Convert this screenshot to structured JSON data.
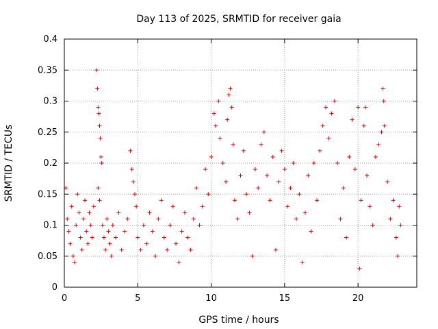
{
  "chart_data": {
    "type": "scatter",
    "title": "Day 113 of 2025, SRMTID for receiver gaia",
    "xlabel": "GPS time / hours",
    "ylabel": "SRMTID / TECUs",
    "xlim": [
      0,
      24
    ],
    "ylim": [
      0,
      0.4
    ],
    "xticks": [
      0,
      5,
      10,
      15,
      20
    ],
    "xtick_labels": [
      "0",
      "5",
      "10",
      "15",
      "20"
    ],
    "yticks": [
      0,
      0.05,
      0.1,
      0.15,
      0.2,
      0.25,
      0.3,
      0.35,
      0.4
    ],
    "ytick_labels": [
      "0",
      "0.05",
      "0.1",
      "0.15",
      "0.2",
      "0.25",
      "0.3",
      "0.35",
      "0.4"
    ],
    "grid": true,
    "marker": "+",
    "color": "#dd0000",
    "series": [
      {
        "name": "SRMTID",
        "points": [
          [
            0.1,
            0.16
          ],
          [
            0.2,
            0.11
          ],
          [
            0.3,
            0.09
          ],
          [
            0.4,
            0.07
          ],
          [
            0.5,
            0.13
          ],
          [
            0.6,
            0.05
          ],
          [
            0.7,
            0.04
          ],
          [
            0.8,
            0.1
          ],
          [
            0.9,
            0.15
          ],
          [
            1.0,
            0.12
          ],
          [
            1.1,
            0.08
          ],
          [
            1.2,
            0.06
          ],
          [
            1.3,
            0.11
          ],
          [
            1.4,
            0.14
          ],
          [
            1.5,
            0.09
          ],
          [
            1.6,
            0.07
          ],
          [
            1.7,
            0.12
          ],
          [
            1.8,
            0.1
          ],
          [
            1.9,
            0.08
          ],
          [
            2.0,
            0.13
          ],
          [
            2.2,
            0.35
          ],
          [
            2.25,
            0.32
          ],
          [
            2.3,
            0.29
          ],
          [
            2.35,
            0.28
          ],
          [
            2.4,
            0.26
          ],
          [
            2.45,
            0.24
          ],
          [
            2.5,
            0.21
          ],
          [
            2.55,
            0.2
          ],
          [
            2.3,
            0.16
          ],
          [
            2.4,
            0.14
          ],
          [
            2.6,
            0.1
          ],
          [
            2.7,
            0.08
          ],
          [
            2.8,
            0.06
          ],
          [
            2.9,
            0.11
          ],
          [
            3.0,
            0.09
          ],
          [
            3.1,
            0.07
          ],
          [
            3.2,
            0.05
          ],
          [
            3.3,
            0.1
          ],
          [
            3.5,
            0.08
          ],
          [
            3.7,
            0.12
          ],
          [
            3.9,
            0.06
          ],
          [
            4.1,
            0.09
          ],
          [
            4.3,
            0.11
          ],
          [
            4.5,
            0.22
          ],
          [
            4.6,
            0.19
          ],
          [
            4.7,
            0.17
          ],
          [
            4.8,
            0.15
          ],
          [
            4.9,
            0.13
          ],
          [
            5.0,
            0.08
          ],
          [
            5.2,
            0.06
          ],
          [
            5.4,
            0.1
          ],
          [
            5.6,
            0.07
          ],
          [
            5.8,
            0.12
          ],
          [
            6.0,
            0.09
          ],
          [
            6.2,
            0.05
          ],
          [
            6.4,
            0.11
          ],
          [
            6.6,
            0.14
          ],
          [
            6.8,
            0.08
          ],
          [
            7.0,
            0.06
          ],
          [
            7.2,
            0.1
          ],
          [
            7.4,
            0.13
          ],
          [
            7.6,
            0.07
          ],
          [
            7.8,
            0.04
          ],
          [
            8.0,
            0.09
          ],
          [
            8.2,
            0.12
          ],
          [
            8.4,
            0.08
          ],
          [
            8.6,
            0.06
          ],
          [
            8.8,
            0.11
          ],
          [
            9.0,
            0.16
          ],
          [
            9.2,
            0.1
          ],
          [
            9.4,
            0.13
          ],
          [
            9.6,
            0.19
          ],
          [
            9.8,
            0.15
          ],
          [
            10.0,
            0.21
          ],
          [
            10.2,
            0.28
          ],
          [
            10.3,
            0.26
          ],
          [
            10.5,
            0.3
          ],
          [
            10.6,
            0.24
          ],
          [
            10.8,
            0.2
          ],
          [
            11.0,
            0.17
          ],
          [
            11.1,
            0.27
          ],
          [
            11.2,
            0.31
          ],
          [
            11.3,
            0.32
          ],
          [
            11.4,
            0.29
          ],
          [
            11.5,
            0.23
          ],
          [
            11.6,
            0.14
          ],
          [
            11.8,
            0.11
          ],
          [
            12.0,
            0.18
          ],
          [
            12.2,
            0.22
          ],
          [
            12.4,
            0.15
          ],
          [
            12.6,
            0.12
          ],
          [
            12.8,
            0.05
          ],
          [
            13.0,
            0.19
          ],
          [
            13.2,
            0.16
          ],
          [
            13.4,
            0.23
          ],
          [
            13.6,
            0.25
          ],
          [
            13.8,
            0.18
          ],
          [
            14.0,
            0.14
          ],
          [
            14.2,
            0.21
          ],
          [
            14.4,
            0.06
          ],
          [
            14.6,
            0.17
          ],
          [
            14.8,
            0.22
          ],
          [
            15.0,
            0.19
          ],
          [
            15.2,
            0.13
          ],
          [
            15.4,
            0.16
          ],
          [
            15.6,
            0.2
          ],
          [
            15.8,
            0.11
          ],
          [
            16.0,
            0.15
          ],
          [
            16.2,
            0.04
          ],
          [
            16.4,
            0.12
          ],
          [
            16.6,
            0.18
          ],
          [
            16.8,
            0.09
          ],
          [
            17.0,
            0.2
          ],
          [
            17.2,
            0.14
          ],
          [
            17.4,
            0.22
          ],
          [
            17.6,
            0.26
          ],
          [
            17.8,
            0.29
          ],
          [
            18.0,
            0.24
          ],
          [
            18.2,
            0.28
          ],
          [
            18.4,
            0.3
          ],
          [
            18.6,
            0.2
          ],
          [
            18.8,
            0.11
          ],
          [
            19.0,
            0.16
          ],
          [
            19.2,
            0.08
          ],
          [
            19.4,
            0.21
          ],
          [
            19.6,
            0.27
          ],
          [
            19.8,
            0.19
          ],
          [
            20.0,
            0.29
          ],
          [
            20.1,
            0.03
          ],
          [
            20.2,
            0.14
          ],
          [
            20.4,
            0.26
          ],
          [
            20.5,
            0.29
          ],
          [
            20.6,
            0.18
          ],
          [
            20.8,
            0.13
          ],
          [
            21.0,
            0.1
          ],
          [
            21.2,
            0.21
          ],
          [
            21.4,
            0.23
          ],
          [
            21.6,
            0.25
          ],
          [
            21.7,
            0.32
          ],
          [
            21.75,
            0.3
          ],
          [
            21.8,
            0.26
          ],
          [
            22.0,
            0.17
          ],
          [
            22.2,
            0.11
          ],
          [
            22.4,
            0.14
          ],
          [
            22.6,
            0.08
          ],
          [
            22.7,
            0.05
          ],
          [
            22.8,
            0.13
          ],
          [
            22.9,
            0.1
          ]
        ]
      }
    ]
  }
}
